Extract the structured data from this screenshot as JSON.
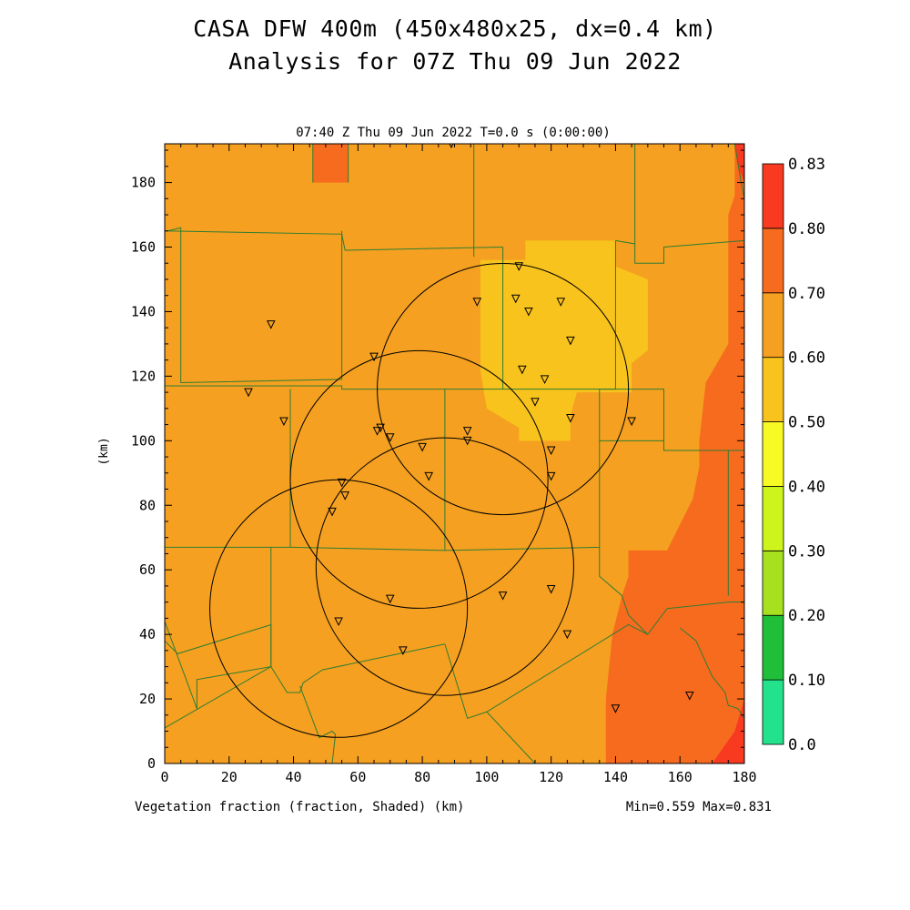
{
  "title_line1": "CASA DFW 400m (450x480x25, dx=0.4 km)",
  "title_line2": "Analysis for 07Z Thu 09 Jun 2022",
  "subtitle": "07:40 Z Thu 09 Jun 2022    T=0.0 s (0:00:00)",
  "footer_left": "Vegetation fraction (fraction, Shaded)  (km)",
  "footer_right": "Min=0.559 Max=0.831",
  "y_axis_label": "(km)",
  "chart_data": {
    "type": "heatmap",
    "variable": "Vegetation fraction",
    "units": "fraction",
    "xlim": [
      0,
      180
    ],
    "ylim": [
      0,
      192
    ],
    "x_ticks": [
      0,
      20,
      40,
      60,
      80,
      100,
      120,
      140,
      160,
      180
    ],
    "y_ticks": [
      0,
      20,
      40,
      60,
      80,
      100,
      120,
      140,
      160,
      180
    ],
    "min": 0.559,
    "max": 0.831,
    "colorbar": {
      "labels": [
        "0.0",
        "0.10",
        "0.20",
        "0.30",
        "0.40",
        "0.50",
        "0.60",
        "0.70",
        "0.80",
        "0.83"
      ],
      "colors": [
        "#22e38c",
        "#1fbf3a",
        "#a6e01e",
        "#cdf51c",
        "#f8fa23",
        "#f8c31c",
        "#f5a020",
        "#f76b1f",
        "#f73a20"
      ]
    },
    "shading_regions": [
      {
        "level": "0.60-0.70",
        "color": "#f5a020",
        "polygon": [
          [
            0,
            0
          ],
          [
            180,
            0
          ],
          [
            180,
            192
          ],
          [
            0,
            192
          ]
        ]
      },
      {
        "level": "0.70-0.80",
        "color": "#f76b1f",
        "polygon": [
          [
            137,
            0
          ],
          [
            180,
            0
          ],
          [
            180,
            192
          ],
          [
            177,
            192
          ],
          [
            177,
            176
          ],
          [
            175,
            170
          ],
          [
            175,
            130
          ],
          [
            168,
            118
          ],
          [
            166,
            100
          ],
          [
            166,
            92
          ],
          [
            164,
            82
          ],
          [
            156,
            66
          ],
          [
            144,
            66
          ],
          [
            144,
            58
          ],
          [
            142,
            52
          ],
          [
            139,
            40
          ],
          [
            137,
            20
          ]
        ]
      },
      {
        "level": "0.70-0.80",
        "color": "#f76b1f",
        "polygon": [
          [
            46,
            180
          ],
          [
            57,
            180
          ],
          [
            57,
            192
          ],
          [
            46,
            192
          ]
        ]
      },
      {
        "level": "0.50-0.60",
        "color": "#f8c31c",
        "polygon": [
          [
            98,
            156
          ],
          [
            112,
            156
          ],
          [
            112,
            162
          ],
          [
            140,
            162
          ],
          [
            140,
            154
          ],
          [
            150,
            150
          ],
          [
            150,
            128
          ],
          [
            145,
            124
          ],
          [
            145,
            115
          ],
          [
            128,
            115
          ],
          [
            126,
            108
          ],
          [
            126,
            100
          ],
          [
            110,
            100
          ],
          [
            110,
            104
          ],
          [
            100,
            110
          ],
          [
            98,
            122
          ]
        ]
      },
      {
        "level": "0.80-0.83",
        "color": "#f73a20",
        "polygon": [
          [
            170,
            0
          ],
          [
            180,
            0
          ],
          [
            180,
            20
          ],
          [
            177,
            10
          ]
        ]
      },
      {
        "level": "0.80-0.83",
        "color": "#f73a20",
        "polygon": [
          [
            177,
            192
          ],
          [
            180,
            192
          ],
          [
            180,
            180
          ],
          [
            178,
            185
          ]
        ]
      }
    ],
    "radar_range_rings": [
      {
        "center": [
          105,
          116
        ],
        "radius": 39
      },
      {
        "center": [
          79,
          88
        ],
        "radius": 40
      },
      {
        "center": [
          87,
          61
        ],
        "radius": 40
      },
      {
        "center": [
          54,
          48
        ],
        "radius": 40
      }
    ],
    "stations": [
      [
        89,
        192
      ],
      [
        110,
        154
      ],
      [
        97,
        143
      ],
      [
        109,
        144
      ],
      [
        113,
        140
      ],
      [
        123,
        143
      ],
      [
        126,
        131
      ],
      [
        33,
        136
      ],
      [
        65,
        126
      ],
      [
        111,
        122
      ],
      [
        118,
        119
      ],
      [
        26,
        115
      ],
      [
        115,
        112
      ],
      [
        126,
        107
      ],
      [
        145,
        106
      ],
      [
        37,
        106
      ],
      [
        67,
        104
      ],
      [
        66,
        103
      ],
      [
        70,
        101
      ],
      [
        94,
        103
      ],
      [
        94,
        100
      ],
      [
        80,
        98
      ],
      [
        120,
        97
      ],
      [
        82,
        89
      ],
      [
        120,
        89
      ],
      [
        55,
        87
      ],
      [
        56,
        83
      ],
      [
        52,
        78
      ],
      [
        70,
        51
      ],
      [
        105,
        52
      ],
      [
        120,
        54
      ],
      [
        54,
        44
      ],
      [
        125,
        40
      ],
      [
        74,
        35
      ],
      [
        140,
        17
      ],
      [
        163,
        21
      ]
    ],
    "boundaries": [
      [
        [
          0,
          165
        ],
        [
          55,
          164
        ],
        [
          56,
          159
        ],
        [
          105,
          160
        ]
      ],
      [
        [
          105,
          160
        ],
        [
          105,
          116
        ],
        [
          140,
          116
        ],
        [
          140,
          162
        ]
      ],
      [
        [
          140,
          162
        ],
        [
          146,
          161
        ],
        [
          146,
          155
        ],
        [
          155,
          155
        ],
        [
          155,
          160
        ],
        [
          180,
          162
        ]
      ],
      [
        [
          146,
          161
        ],
        [
          146,
          192
        ]
      ],
      [
        [
          46,
          180
        ],
        [
          46,
          192
        ]
      ],
      [
        [
          57,
          180
        ],
        [
          57,
          192
        ]
      ],
      [
        [
          96,
          157
        ],
        [
          96,
          192
        ]
      ],
      [
        [
          1,
          165
        ],
        [
          5,
          166
        ],
        [
          5,
          118
        ],
        [
          55,
          119
        ],
        [
          55,
          165
        ]
      ],
      [
        [
          0,
          117
        ],
        [
          55,
          117
        ],
        [
          55,
          116
        ],
        [
          105,
          116
        ]
      ],
      [
        [
          39,
          116
        ],
        [
          39,
          67
        ]
      ],
      [
        [
          87,
          116
        ],
        [
          87,
          66
        ]
      ],
      [
        [
          0,
          67
        ],
        [
          39,
          67
        ],
        [
          87,
          66
        ],
        [
          135,
          67
        ],
        [
          135,
          116
        ]
      ],
      [
        [
          135,
          116
        ],
        [
          155,
          116
        ],
        [
          155,
          100
        ],
        [
          155,
          97
        ],
        [
          175,
          97
        ],
        [
          175,
          52
        ]
      ],
      [
        [
          135,
          100
        ],
        [
          155,
          100
        ]
      ],
      [
        [
          135,
          67
        ],
        [
          135,
          58
        ],
        [
          142,
          52
        ],
        [
          144,
          46
        ],
        [
          150,
          40
        ],
        [
          156,
          48
        ],
        [
          175,
          50
        ],
        [
          180,
          50
        ]
      ],
      [
        [
          33,
          67
        ],
        [
          33,
          30
        ],
        [
          10,
          26
        ],
        [
          10,
          17
        ]
      ],
      [
        [
          0,
          38
        ],
        [
          4,
          34
        ],
        [
          33,
          43
        ],
        [
          33,
          30
        ],
        [
          38,
          22
        ],
        [
          42,
          22
        ],
        [
          43,
          25
        ],
        [
          49,
          29
        ],
        [
          87,
          37
        ]
      ],
      [
        [
          0,
          11
        ],
        [
          33,
          30
        ]
      ],
      [
        [
          0,
          44
        ],
        [
          10,
          17
        ]
      ],
      [
        [
          42,
          24
        ],
        [
          48,
          8
        ],
        [
          52,
          10
        ],
        [
          53,
          9
        ],
        [
          52,
          0
        ]
      ],
      [
        [
          87,
          37
        ],
        [
          94,
          14
        ],
        [
          100,
          16
        ],
        [
          144,
          43
        ]
      ],
      [
        [
          100,
          16
        ],
        [
          115,
          0
        ]
      ],
      [
        [
          144,
          43
        ],
        [
          150,
          40
        ]
      ],
      [
        [
          160,
          42
        ],
        [
          165,
          38
        ],
        [
          170,
          27
        ],
        [
          174,
          22
        ],
        [
          175,
          18
        ],
        [
          178,
          17
        ],
        [
          180,
          14
        ]
      ],
      [
        [
          175,
          97
        ],
        [
          180,
          97
        ]
      ],
      [
        [
          177,
          192
        ],
        [
          179,
          180
        ],
        [
          180,
          175
        ]
      ]
    ]
  }
}
